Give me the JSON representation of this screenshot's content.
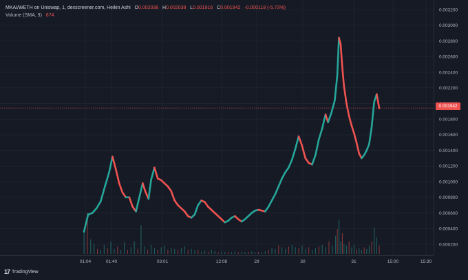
{
  "header": {
    "symbol": "MKAI/WETH on Uniswap, 1, dexscreener.com, Heikin Ashi",
    "open_label": "O",
    "open": "0.002038",
    "high_label": "H",
    "high": "0.002038",
    "low_label": "L",
    "low": "0.001916",
    "close_label": "C",
    "close": "0.001942",
    "change": "-0.000118 (-5.73%)",
    "volume_label": "Volume (SMA, 9)",
    "volume_value": "674"
  },
  "last_price_tag": "0.001942",
  "branding": {
    "logo_mark": "17",
    "name": "TradingView"
  },
  "colors": {
    "background": "#161a25",
    "up": "#26a69a",
    "down": "#ef5350",
    "grid": "#232733",
    "text": "#b2b5be"
  },
  "chart_data": {
    "type": "line",
    "title": "",
    "xlabel": "",
    "ylabel": "",
    "ylim": [
      8e-05,
      0.00324
    ],
    "y_ticks": [
      "0.000200",
      "0.000400",
      "0.000600",
      "0.000800",
      "0.001000",
      "0.001200",
      "0.001400",
      "0.001600",
      "0.001800",
      "0.002000",
      "0.002200",
      "0.002400",
      "0.002600",
      "0.002800",
      "0.003000",
      "0.003200"
    ],
    "x_ticks": [
      "01:04",
      "01:40",
      "03:01",
      "12:08",
      "29",
      "30",
      "31",
      "15:00",
      "15:30"
    ],
    "grid": true,
    "last_price": 0.001942,
    "series": [
      {
        "points": [
          [
            0.0,
            0.00036
          ],
          [
            0.5,
            0.00058
          ],
          [
            1.0,
            0.0006
          ],
          [
            1.5,
            0.00066
          ],
          [
            2.0,
            0.00075
          ],
          [
            2.5,
            0.00094
          ],
          [
            3.0,
            0.00112
          ],
          [
            3.4,
            0.00132
          ],
          [
            3.8,
            0.00116
          ],
          [
            4.2,
            0.00098
          ],
          [
            4.6,
            0.00086
          ],
          [
            5.0,
            0.0008
          ],
          [
            5.4,
            0.0008
          ],
          [
            5.8,
            0.00068
          ],
          [
            6.2,
            0.00062
          ],
          [
            6.6,
            0.0008
          ],
          [
            7.0,
            0.00098
          ],
          [
            7.3,
            0.00088
          ],
          [
            7.7,
            0.00078
          ],
          [
            8.0,
            0.00102
          ],
          [
            8.4,
            0.00118
          ],
          [
            8.8,
            0.00104
          ],
          [
            9.2,
            0.00102
          ],
          [
            9.6,
            0.00098
          ],
          [
            10.0,
            0.00094
          ],
          [
            10.4,
            0.00088
          ],
          [
            10.8,
            0.00076
          ],
          [
            11.2,
            0.0007
          ],
          [
            11.6,
            0.00066
          ],
          [
            12.0,
            0.00062
          ],
          [
            12.4,
            0.00056
          ],
          [
            12.8,
            0.00054
          ],
          [
            13.2,
            0.00058
          ],
          [
            13.6,
            0.0007
          ],
          [
            14.0,
            0.00076
          ],
          [
            14.4,
            0.00074
          ],
          [
            14.8,
            0.00068
          ],
          [
            15.2,
            0.00064
          ],
          [
            15.6,
            0.0006
          ],
          [
            16.0,
            0.00056
          ],
          [
            16.4,
            0.00052
          ],
          [
            16.8,
            0.00048
          ],
          [
            17.2,
            0.0005
          ],
          [
            17.6,
            0.00054
          ],
          [
            18.0,
            0.00056
          ],
          [
            18.4,
            0.00052
          ],
          [
            18.8,
            0.00049
          ],
          [
            19.2,
            0.00052
          ],
          [
            19.6,
            0.00056
          ],
          [
            20.0,
            0.0006
          ],
          [
            20.4,
            0.00063
          ],
          [
            20.8,
            0.00064
          ],
          [
            21.2,
            0.00063
          ],
          [
            21.6,
            0.00062
          ],
          [
            22.0,
            0.00068
          ],
          [
            22.4,
            0.00076
          ],
          [
            22.8,
            0.00084
          ],
          [
            23.2,
            0.00094
          ],
          [
            23.6,
            0.00104
          ],
          [
            24.0,
            0.00112
          ],
          [
            24.4,
            0.00118
          ],
          [
            24.8,
            0.00128
          ],
          [
            25.2,
            0.00142
          ],
          [
            25.6,
            0.00158
          ],
          [
            26.0,
            0.00146
          ],
          [
            26.4,
            0.0013
          ],
          [
            26.8,
            0.00124
          ],
          [
            27.2,
            0.00122
          ],
          [
            27.6,
            0.00134
          ],
          [
            28.0,
            0.00154
          ],
          [
            28.4,
            0.00168
          ],
          [
            28.8,
            0.00186
          ],
          [
            29.1,
            0.00176
          ],
          [
            29.5,
            0.00188
          ],
          [
            29.9,
            0.00204
          ],
          [
            30.2,
            0.00236
          ],
          [
            30.4,
            0.00284
          ],
          [
            30.6,
            0.00276
          ],
          [
            30.8,
            0.00246
          ],
          [
            31.0,
            0.00222
          ],
          [
            31.3,
            0.002
          ],
          [
            31.6,
            0.00184
          ],
          [
            31.9,
            0.00172
          ],
          [
            32.2,
            0.00162
          ],
          [
            32.5,
            0.0015
          ],
          [
            32.8,
            0.00136
          ],
          [
            33.1,
            0.0013
          ],
          [
            33.4,
            0.00134
          ],
          [
            33.7,
            0.0014
          ],
          [
            34.0,
            0.00148
          ],
          [
            34.3,
            0.0017
          ],
          [
            34.6,
            0.00202
          ],
          [
            34.9,
            0.00212
          ],
          [
            35.2,
            0.00194
          ]
        ]
      }
    ],
    "volume": {
      "name": "Volume (SMA, 9)",
      "bars": [
        [
          0.0,
          0.55
        ],
        [
          0.4,
          1.0
        ],
        [
          0.8,
          0.35
        ],
        [
          1.2,
          0.25
        ],
        [
          1.6,
          0.12
        ],
        [
          2.0,
          0.1
        ],
        [
          2.4,
          0.22
        ],
        [
          2.8,
          0.14
        ],
        [
          3.2,
          0.3
        ],
        [
          3.6,
          0.12
        ],
        [
          4.0,
          0.18
        ],
        [
          4.4,
          0.1
        ],
        [
          4.8,
          0.28
        ],
        [
          5.2,
          0.1
        ],
        [
          5.6,
          0.16
        ],
        [
          6.0,
          0.3
        ],
        [
          6.4,
          0.12
        ],
        [
          6.8,
          0.7
        ],
        [
          7.2,
          0.18
        ],
        [
          7.6,
          0.1
        ],
        [
          8.0,
          0.22
        ],
        [
          8.4,
          0.14
        ],
        [
          8.8,
          0.1
        ],
        [
          9.2,
          0.16
        ],
        [
          9.6,
          0.2
        ],
        [
          10.0,
          0.1
        ],
        [
          10.4,
          0.15
        ],
        [
          10.8,
          0.12
        ],
        [
          11.2,
          0.1
        ],
        [
          11.6,
          0.14
        ],
        [
          12.0,
          0.18
        ],
        [
          12.4,
          0.1
        ],
        [
          12.8,
          0.12
        ],
        [
          13.2,
          0.08
        ],
        [
          13.6,
          0.1
        ],
        [
          14.0,
          0.06
        ],
        [
          14.4,
          0.08
        ],
        [
          14.8,
          0.05
        ],
        [
          15.2,
          0.1
        ],
        [
          15.6,
          0.07
        ],
        [
          16.0,
          0.04
        ],
        [
          16.4,
          0.06
        ],
        [
          16.8,
          0.05
        ],
        [
          17.2,
          0.05
        ],
        [
          17.6,
          0.04
        ],
        [
          18.0,
          0.06
        ],
        [
          18.4,
          0.04
        ],
        [
          18.8,
          0.05
        ],
        [
          19.2,
          0.04
        ],
        [
          19.6,
          0.05
        ],
        [
          20.0,
          0.06
        ],
        [
          20.4,
          0.04
        ],
        [
          20.8,
          0.05
        ],
        [
          21.2,
          0.04
        ],
        [
          21.6,
          0.06
        ],
        [
          22.0,
          0.1
        ],
        [
          22.4,
          0.14
        ],
        [
          22.8,
          0.12
        ],
        [
          23.2,
          0.2
        ],
        [
          23.6,
          0.16
        ],
        [
          24.0,
          0.12
        ],
        [
          24.4,
          0.18
        ],
        [
          24.8,
          0.22
        ],
        [
          25.2,
          0.16
        ],
        [
          25.6,
          0.14
        ],
        [
          26.0,
          0.2
        ],
        [
          26.4,
          0.12
        ],
        [
          26.8,
          0.16
        ],
        [
          27.2,
          0.1
        ],
        [
          27.6,
          0.14
        ],
        [
          28.0,
          0.18
        ],
        [
          28.4,
          0.22
        ],
        [
          28.8,
          0.16
        ],
        [
          29.2,
          0.3
        ],
        [
          29.6,
          0.2
        ],
        [
          30.0,
          0.44
        ],
        [
          30.2,
          0.6
        ],
        [
          30.4,
          0.82
        ],
        [
          30.6,
          0.3
        ],
        [
          30.8,
          0.5
        ],
        [
          31.0,
          0.24
        ],
        [
          31.3,
          0.2
        ],
        [
          31.6,
          0.3
        ],
        [
          31.9,
          0.16
        ],
        [
          32.2,
          0.22
        ],
        [
          32.5,
          0.12
        ],
        [
          32.8,
          0.14
        ],
        [
          33.1,
          0.1
        ],
        [
          33.4,
          0.16
        ],
        [
          33.7,
          0.12
        ],
        [
          34.0,
          0.2
        ],
        [
          34.3,
          0.3
        ],
        [
          34.6,
          0.64
        ],
        [
          34.9,
          0.4
        ],
        [
          35.2,
          0.2
        ]
      ]
    }
  }
}
